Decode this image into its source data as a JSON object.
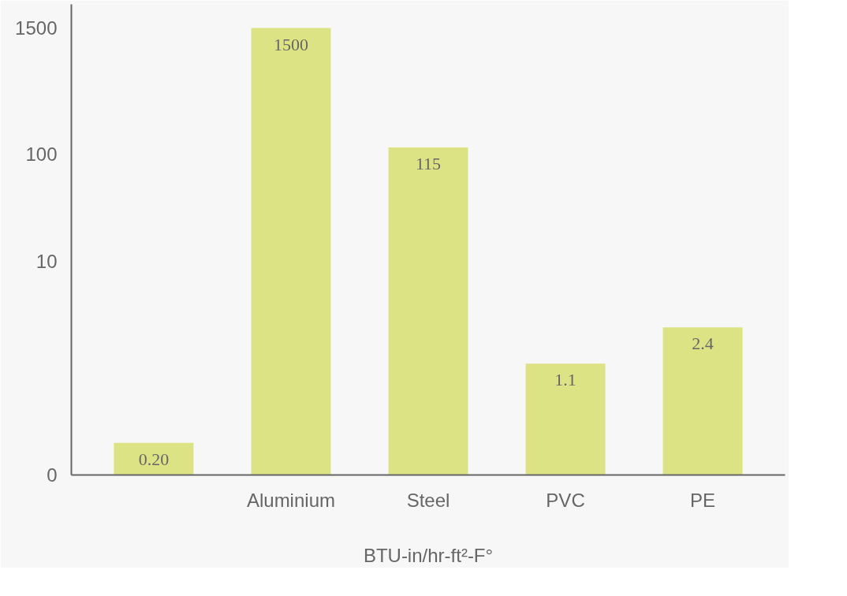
{
  "chart_data": {
    "type": "bar",
    "xlabel": "BTU-in/hr-ft²-F°",
    "categories": [
      null,
      "Aluminium",
      "Steel",
      "PVC",
      "PE"
    ],
    "values": [
      0.2,
      1500,
      115,
      1.1,
      2.4
    ],
    "value_labels": [
      "0.20",
      "1500",
      "115",
      "1.1",
      "2.4"
    ],
    "color": "#dce385",
    "log": true,
    "ylim": [
      0.1,
      2500
    ],
    "yticks": [
      {
        "value": 0.1,
        "label": "0"
      },
      10,
      100,
      1500
    ],
    "grid": false
  }
}
